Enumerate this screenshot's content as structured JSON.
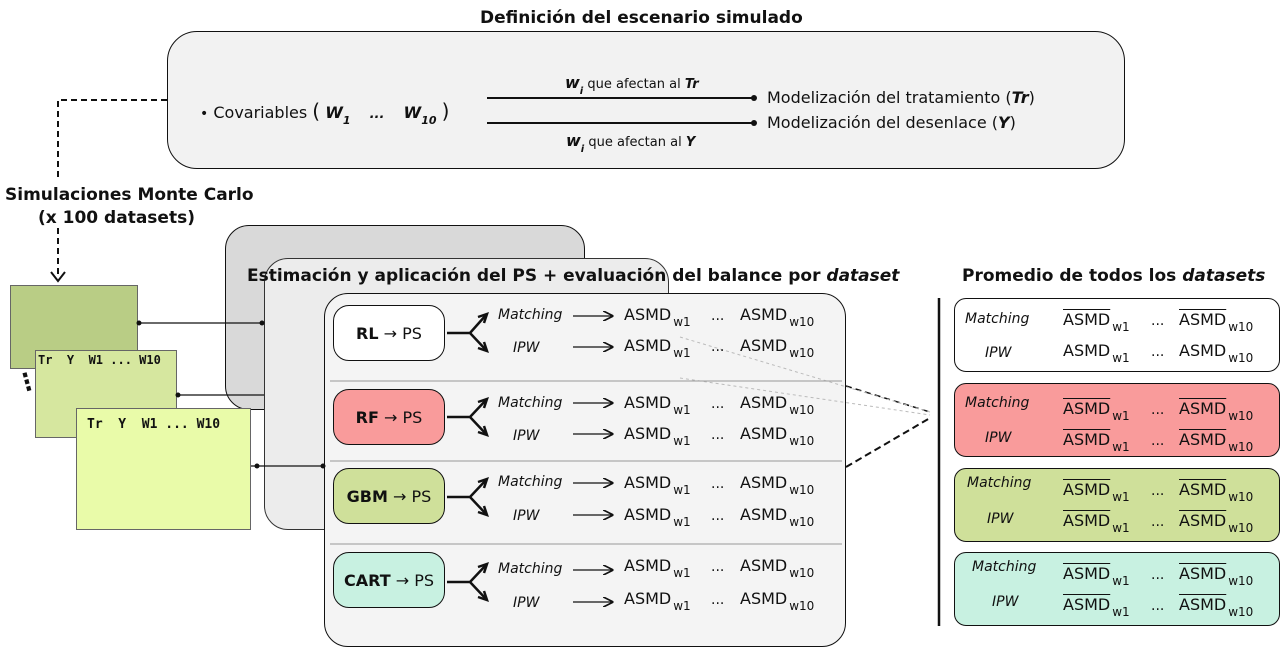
{
  "scenario": {
    "title": "Definición del escenario simulado",
    "covariates_label": "Covariables",
    "w_first": "W",
    "w_first_sub": "1",
    "ellipsis": "...",
    "w_last": "W",
    "w_last_sub": "10",
    "top_arrow_w": "w",
    "top_arrow_w_sub": "i",
    "top_arrow_text": "que afectan al",
    "top_arrow_target": "Tr",
    "bottom_arrow_w": "w",
    "bottom_arrow_w_sub": "i",
    "bottom_arrow_text": "que afectan al",
    "bottom_arrow_target": "Y",
    "treatment_label": "Modelización del tratamiento",
    "treatment_symbol": "Tr",
    "outcome_label": "Modelización del desenlace",
    "outcome_symbol": "Y"
  },
  "monte_carlo": {
    "line1": "Simulaciones Monte Carlo",
    "line2": "(x 100 datasets)",
    "header_row": "Tr  Y  W1 ... W10",
    "vertical_dots": "⋮"
  },
  "estimation": {
    "title_main": "Estimación y aplicación del PS +  evaluación del balance por ",
    "title_italic": "dataset",
    "ps_suffix": "PS",
    "arrow": "→",
    "matching_label": "Matching",
    "ipw_label": "IPW",
    "asmd": "ASMD",
    "sub_w1": "w1",
    "sub_w10": "w10",
    "dots": "...",
    "methods": [
      {
        "name": "RL",
        "color": "#ffffff"
      },
      {
        "name": "RF",
        "color": "#f99b9b"
      },
      {
        "name": "GBM",
        "color": "#cfe09a"
      },
      {
        "name": "CART",
        "color": "#c8f1e1"
      }
    ]
  },
  "average": {
    "title_main": "Promedio de todos los ",
    "title_italic": "datasets",
    "matching_label": "Matching",
    "ipw_label": "IPW",
    "asmd": "ASMD",
    "sub_w1": "w1",
    "sub_w10": "w10",
    "dots": "...",
    "boxes": [
      {
        "color": "#ffffff"
      },
      {
        "color": "#f99b9b"
      },
      {
        "color": "#cfe09a"
      },
      {
        "color": "#c8f1e1"
      }
    ]
  }
}
